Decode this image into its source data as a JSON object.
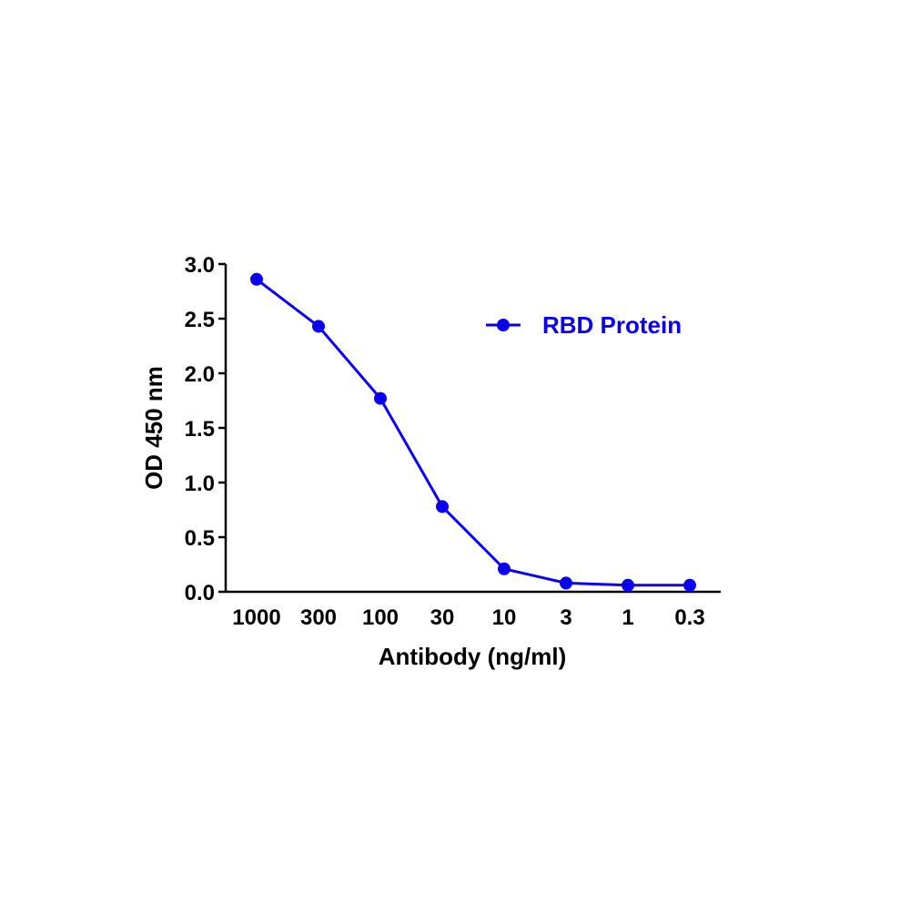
{
  "chart_data": {
    "type": "line",
    "title": "",
    "xlabel": "Antibody (ng/ml)",
    "ylabel": "OD 450 nm",
    "categories": [
      "1000",
      "300",
      "100",
      "30",
      "10",
      "3",
      "1",
      "0.3"
    ],
    "series": [
      {
        "name": "RBD Protein",
        "color": "#0b00ee",
        "values": [
          2.86,
          2.43,
          1.77,
          0.78,
          0.21,
          0.08,
          0.06,
          0.06
        ]
      }
    ],
    "ylim": [
      0,
      3.0
    ],
    "yticks": [
      0.0,
      0.5,
      1.0,
      1.5,
      2.0,
      2.5,
      3.0
    ],
    "ytick_labels": [
      "0.0",
      "0.5",
      "1.0",
      "1.5",
      "2.0",
      "2.5",
      "3.0"
    ],
    "grid": false,
    "legend_position": "top-right"
  }
}
